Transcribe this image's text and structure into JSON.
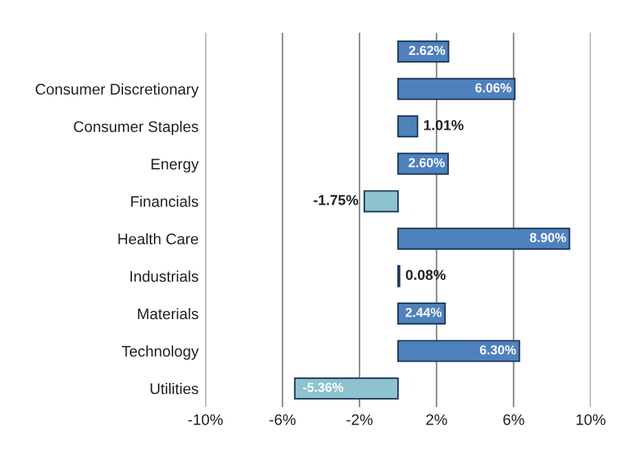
{
  "chart_data": {
    "type": "bar",
    "orientation": "horizontal",
    "categories": [
      null,
      "Consumer Discretionary",
      "Consumer Staples",
      "Energy",
      "Financials",
      "Health Care",
      "Industrials",
      "Materials",
      "Technology",
      "Utilities"
    ],
    "values": [
      2.62,
      6.06,
      1.01,
      2.6,
      -1.75,
      8.9,
      0.08,
      2.44,
      6.3,
      -5.36
    ],
    "value_labels": [
      "2.62%",
      "6.06%",
      "1.01%",
      "2.60%",
      "-1.75%",
      "8.90%",
      "0.08%",
      "2.44%",
      "6.30%",
      "-5.36%"
    ],
    "colors": [
      "#4f81bd",
      "#4f81bd",
      "#4f81bd",
      "#4f81bd",
      "#8cc3cf",
      "#4f81bd",
      "#4f81bd",
      "#4f81bd",
      "#4f81bd",
      "#8cc3cf"
    ],
    "xlim": [
      -10,
      10
    ],
    "xticks": [
      {
        "value": -10,
        "label": "-10%"
      },
      {
        "value": -6,
        "label": "-6%"
      },
      {
        "value": -2,
        "label": "-2%"
      },
      {
        "value": 2,
        "label": "2%"
      },
      {
        "value": 6,
        "label": "6%"
      },
      {
        "value": 10,
        "label": "10%"
      }
    ],
    "grid": "x"
  }
}
